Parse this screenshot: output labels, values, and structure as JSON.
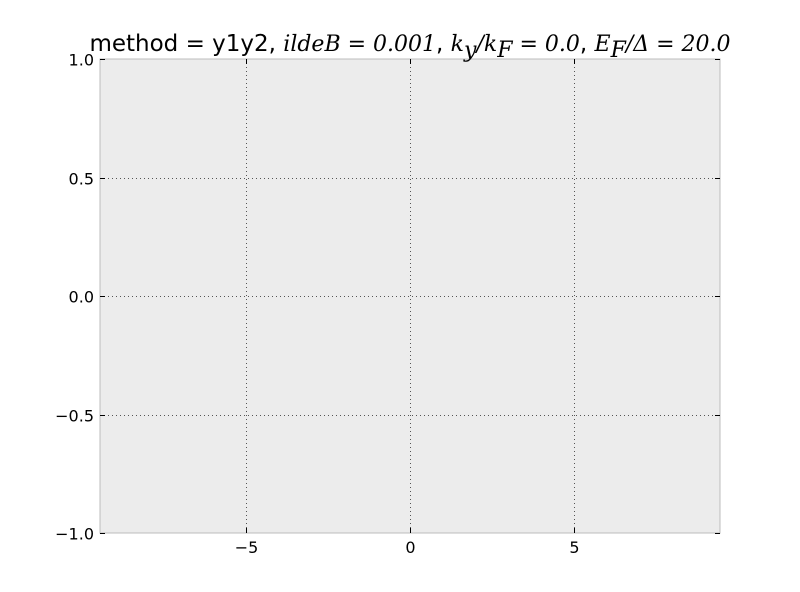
{
  "chart_data": {
    "type": "line",
    "title_parts": [
      {
        "text": "method = y1y2, ",
        "style": "plain"
      },
      {
        "text": "ildeB = 0.001",
        "style": "math"
      },
      {
        "text": ", ",
        "style": "plain"
      },
      {
        "text": "k",
        "style": "math"
      },
      {
        "text": "y",
        "style": "math-sub"
      },
      {
        "text": "/k",
        "style": "math"
      },
      {
        "text": "F",
        "style": "math-sub"
      },
      {
        "text": " = 0.0",
        "style": "math"
      },
      {
        "text": ", ",
        "style": "plain"
      },
      {
        "text": "E",
        "style": "math"
      },
      {
        "text": "F",
        "style": "math-sub"
      },
      {
        "text": "/Δ = 20.0",
        "style": "math"
      }
    ],
    "xlim": [
      -9.46,
      9.46
    ],
    "ylim": [
      -1.0,
      1.0
    ],
    "xticks": [
      -5,
      0,
      5
    ],
    "xtick_labels": [
      "−5",
      "0",
      "5"
    ],
    "yticks": [
      1.0,
      0.5,
      0.0,
      -0.5,
      -1.0
    ],
    "ytick_labels": [
      "1.0",
      "0.5",
      "0.0",
      "−0.5",
      "−1.0"
    ],
    "grid": true,
    "grid_style": "dotted",
    "series": [],
    "colors": {
      "axes_background": "#ececec",
      "frame": "#bcbcbc",
      "grid": "#555555",
      "page": "#ffffff"
    }
  }
}
